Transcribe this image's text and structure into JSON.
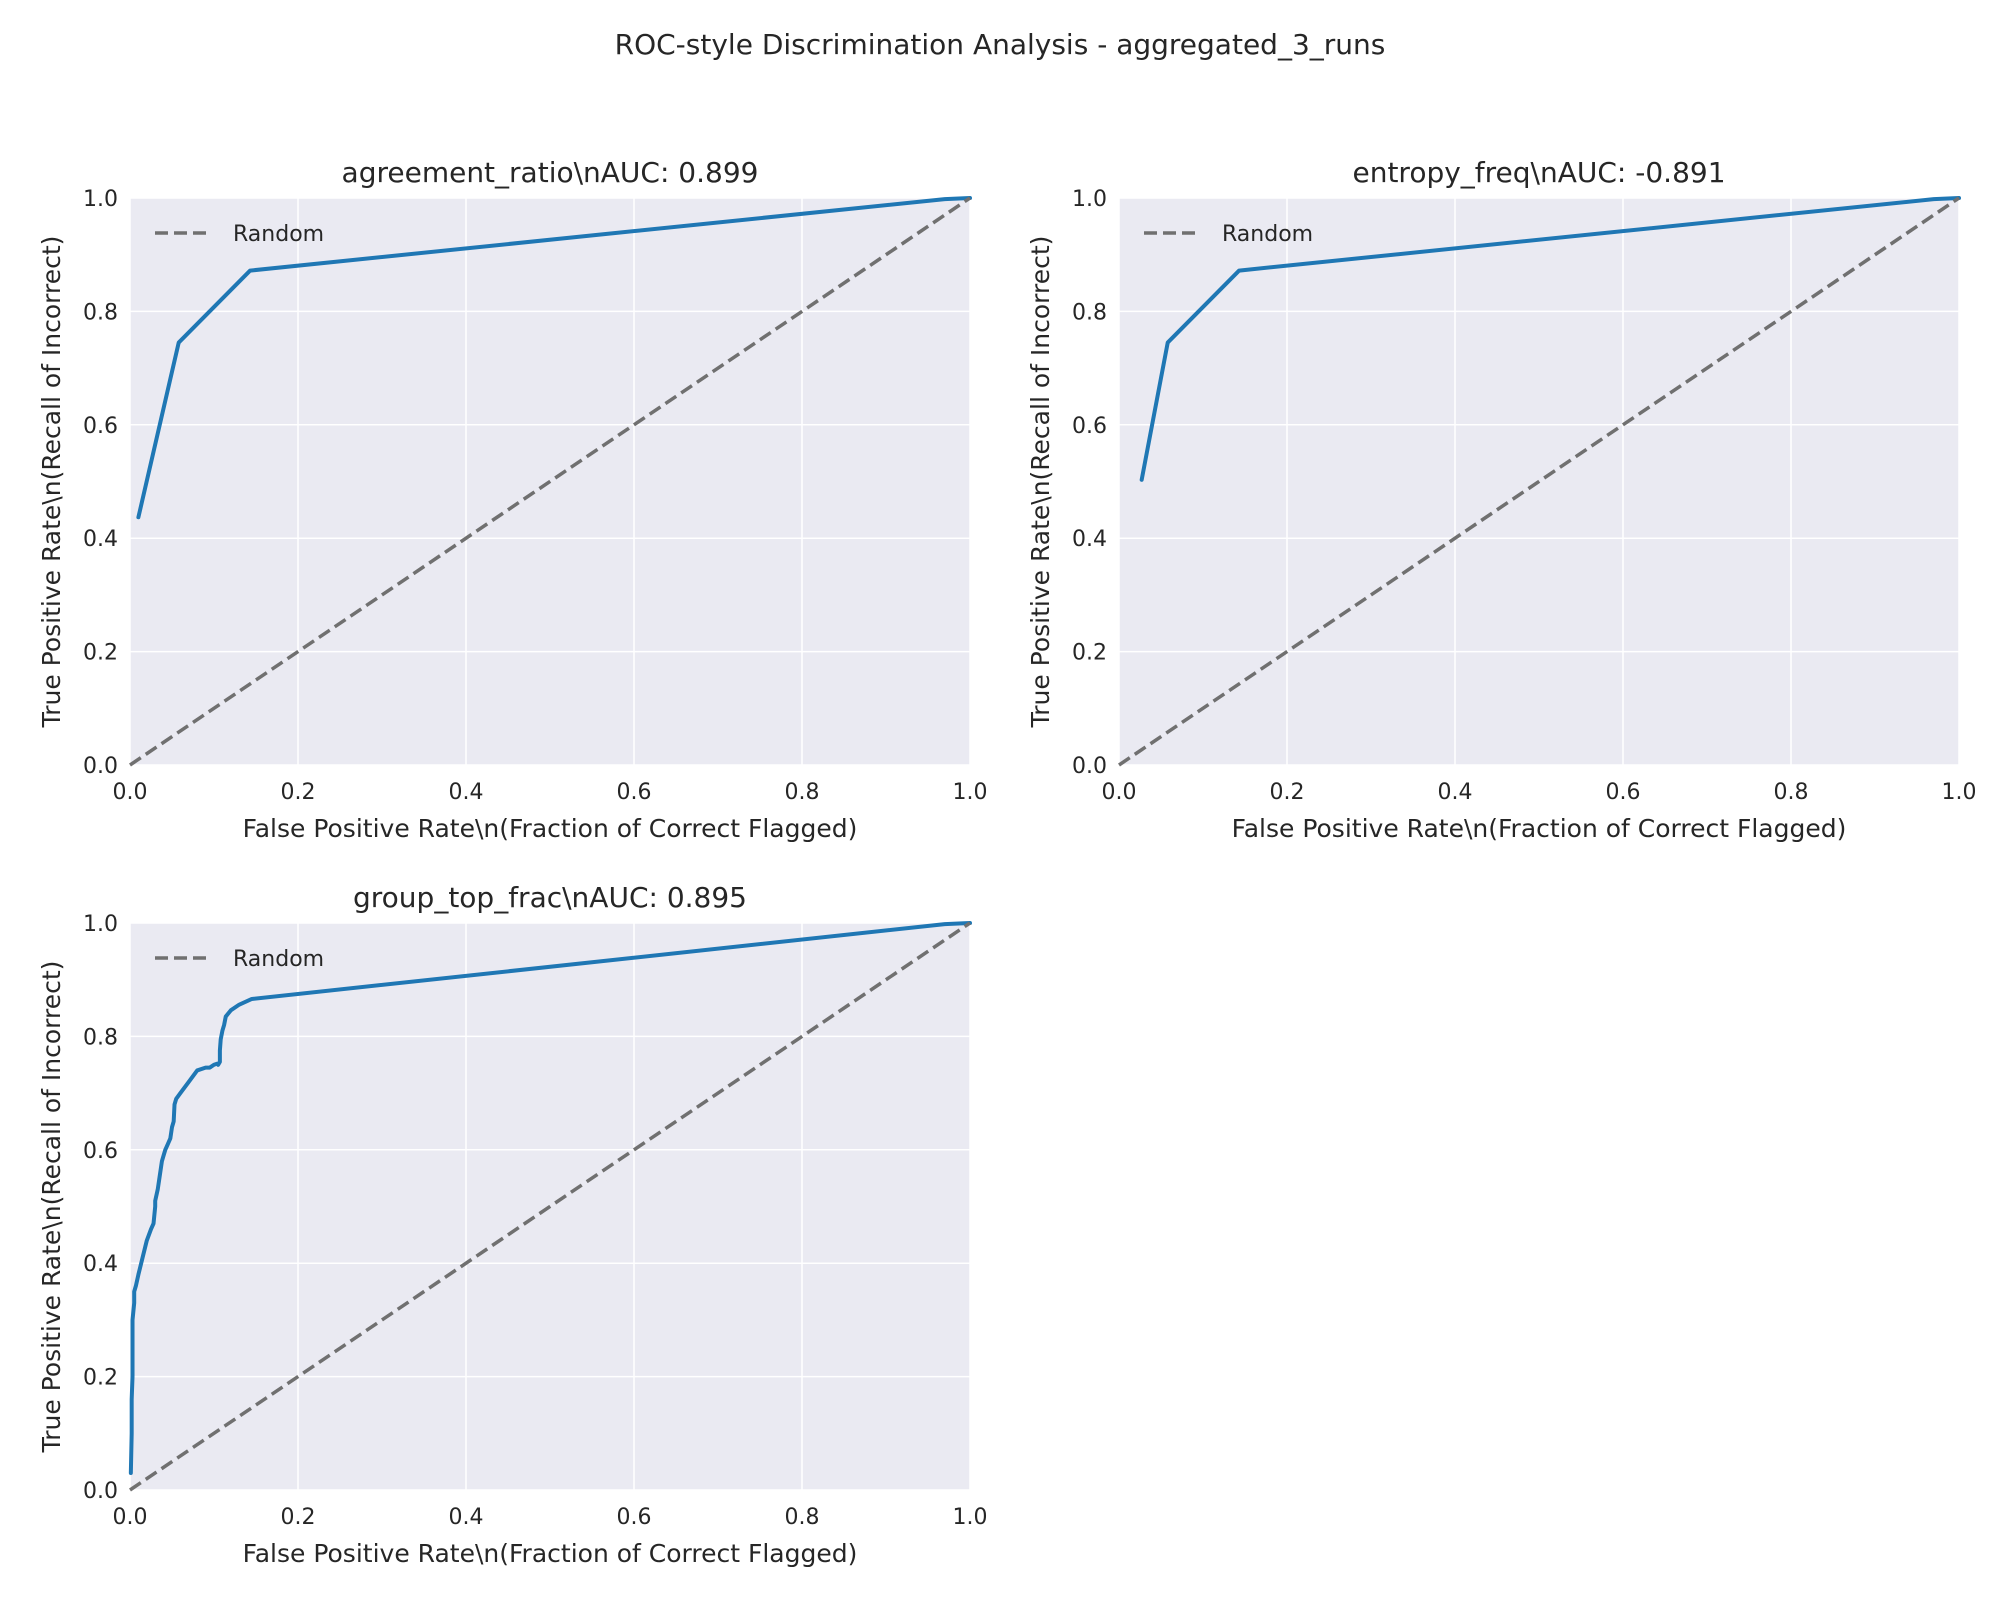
{
  "figure": {
    "suptitle": "ROC-style Discrimination Analysis - aggregated_3_runs"
  },
  "colors": {
    "plot_bg": "#eaeaf2",
    "grid": "#ffffff",
    "roc_line": "#1f77b4",
    "random_line": "#707070",
    "text": "#262626"
  },
  "chart_data": [
    {
      "type": "line",
      "title": "agreement_ratio\\nAUC: 0.899",
      "xlabel": "False Positive Rate\\n(Fraction of Correct Flagged)",
      "ylabel": "True Positive Rate\\n(Recall of Incorrect)",
      "xlim": [
        0,
        1
      ],
      "ylim": [
        0,
        1
      ],
      "xticks": [
        "0.0",
        "0.2",
        "0.4",
        "0.6",
        "0.8",
        "1.0"
      ],
      "yticks": [
        "0.0",
        "0.2",
        "0.4",
        "0.6",
        "0.8",
        "1.0"
      ],
      "grid": true,
      "legend": {
        "position": "top-left",
        "entries": [
          "Random"
        ]
      },
      "series": [
        {
          "style": "solid",
          "x": [
            0.01,
            0.058,
            0.143,
            0.97,
            1.0
          ],
          "y": [
            0.437,
            0.745,
            0.872,
            0.998,
            1.0
          ]
        },
        {
          "name": "Random",
          "style": "dashed",
          "x": [
            0,
            1
          ],
          "y": [
            0,
            1
          ]
        }
      ]
    },
    {
      "type": "line",
      "title": "entropy_freq\\nAUC: -0.891",
      "xlabel": "False Positive Rate\\n(Fraction of Correct Flagged)",
      "ylabel": "True Positive Rate\\n(Recall of Incorrect)",
      "xlim": [
        0,
        1
      ],
      "ylim": [
        0,
        1
      ],
      "xticks": [
        "0.0",
        "0.2",
        "0.4",
        "0.6",
        "0.8",
        "1.0"
      ],
      "yticks": [
        "0.0",
        "0.2",
        "0.4",
        "0.6",
        "0.8",
        "1.0"
      ],
      "grid": true,
      "legend": {
        "position": "top-left",
        "entries": [
          "Random"
        ]
      },
      "series": [
        {
          "style": "solid",
          "x": [
            0.027,
            0.058,
            0.143,
            0.97,
            1.0
          ],
          "y": [
            0.503,
            0.745,
            0.872,
            0.998,
            1.0
          ]
        },
        {
          "name": "Random",
          "style": "dashed",
          "x": [
            0,
            1
          ],
          "y": [
            0,
            1
          ]
        }
      ]
    },
    {
      "type": "line",
      "title": "group_top_frac\\nAUC: 0.895",
      "xlabel": "False Positive Rate\\n(Fraction of Correct Flagged)",
      "ylabel": "True Positive Rate\\n(Recall of Incorrect)",
      "xlim": [
        0,
        1
      ],
      "ylim": [
        0,
        1
      ],
      "xticks": [
        "0.0",
        "0.2",
        "0.4",
        "0.6",
        "0.8",
        "1.0"
      ],
      "yticks": [
        "0.0",
        "0.2",
        "0.4",
        "0.6",
        "0.8",
        "1.0"
      ],
      "grid": true,
      "legend": {
        "position": "top-left",
        "entries": [
          "Random"
        ]
      },
      "series": [
        {
          "style": "solid",
          "x": [
            0.001,
            0.002,
            0.002,
            0.003,
            0.003,
            0.005,
            0.005,
            0.007,
            0.01,
            0.015,
            0.02,
            0.025,
            0.028,
            0.03,
            0.03,
            0.033,
            0.035,
            0.038,
            0.04,
            0.042,
            0.045,
            0.048,
            0.05,
            0.052,
            0.053,
            0.055,
            0.06,
            0.07,
            0.08,
            0.09,
            0.095,
            0.1,
            0.104,
            0.105,
            0.107,
            0.107,
            0.108,
            0.11,
            0.112,
            0.114,
            0.12,
            0.13,
            0.145,
            0.97,
            1.0
          ],
          "y": [
            0.03,
            0.1,
            0.16,
            0.2,
            0.3,
            0.33,
            0.35,
            0.36,
            0.38,
            0.41,
            0.44,
            0.46,
            0.47,
            0.5,
            0.51,
            0.53,
            0.55,
            0.58,
            0.59,
            0.6,
            0.61,
            0.62,
            0.64,
            0.65,
            0.68,
            0.69,
            0.7,
            0.72,
            0.74,
            0.745,
            0.745,
            0.75,
            0.752,
            0.75,
            0.755,
            0.775,
            0.795,
            0.81,
            0.82,
            0.835,
            0.846,
            0.856,
            0.866,
            0.998,
            1.0
          ]
        },
        {
          "name": "Random",
          "style": "dashed",
          "x": [
            0,
            1
          ],
          "y": [
            0,
            1
          ]
        }
      ]
    }
  ]
}
